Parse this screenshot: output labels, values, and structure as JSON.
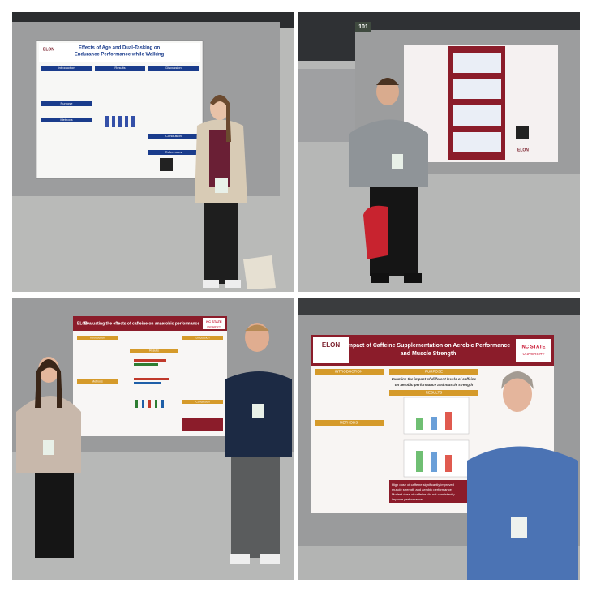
{
  "panels": [
    {
      "poster": {
        "logo": "ELON",
        "title_lines": [
          "Effects of Age and Dual-Tasking on",
          "Endurance Performance while Walking"
        ],
        "sections": [
          "Introduction",
          "Results",
          "Discussion",
          "Purpose",
          "Methods",
          "Conclusion",
          "References"
        ]
      }
    },
    {
      "sign": "101",
      "poster": {
        "logo": "ELON"
      }
    },
    {
      "poster": {
        "logo": "ELON",
        "title_lines": [
          "Evaluating the effects of caffeine on anaerobic performance"
        ],
        "badge_lines": [
          "NC STATE",
          "UNIVERSITY"
        ],
        "sections": [
          "Introduction",
          "Methods",
          "Results",
          "Discussion",
          "Conclusion"
        ]
      }
    },
    {
      "poster": {
        "logo": "ELON",
        "title_lines": [
          "Impact of Caffeine Supplementation on Aerobic Performance",
          "and Muscle Strength"
        ],
        "badge_lines": [
          "NC STATE",
          "UNIVERSITY"
        ],
        "sections": [
          "INTRODUCTION",
          "PURPOSE",
          "METHODS",
          "RESULTS"
        ],
        "purpose_lines": [
          "Examine the impact of different levels of caffeine",
          "on aerobic performance and muscle strength"
        ],
        "conclusion_lines": [
          "High dose of caffeine significantly improved",
          "muscle strength and aerobic performance",
          "Modest dose of caffeine did not consistently",
          "improve performance"
        ]
      }
    }
  ]
}
